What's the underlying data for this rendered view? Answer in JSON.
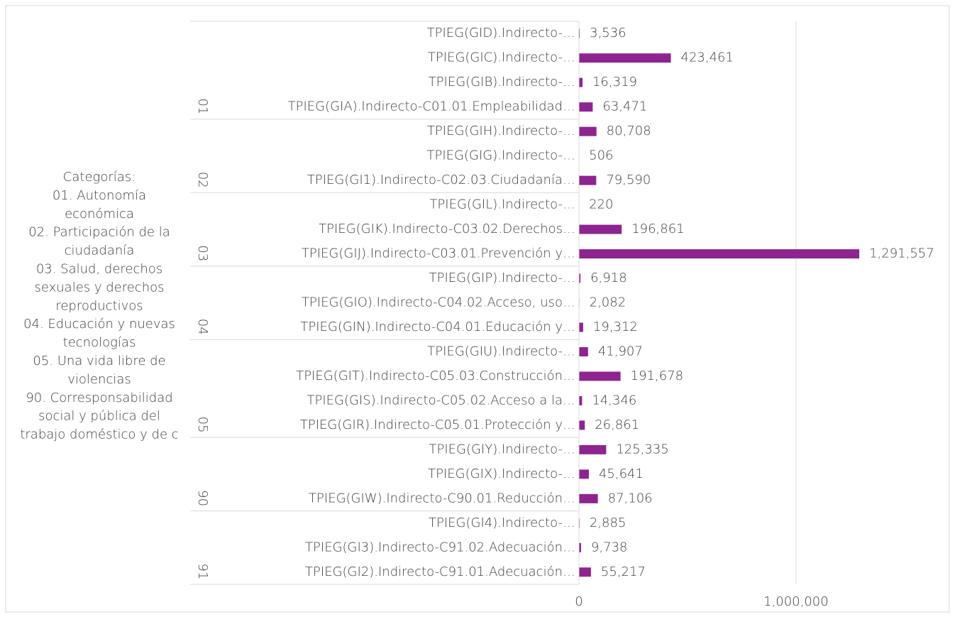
{
  "chart_data": {
    "type": "grouped_hbar",
    "color": "#8e2490",
    "side_text_lines": [
      "Categorías:",
      "01. Autonomía",
      "económica",
      "02. Participación de la",
      "ciudadanía",
      "03. Salud, derechos",
      "sexuales y derechos",
      "reproductivos",
      "04. Educación y nuevas",
      "tecnologías",
      "05. Una vida libre de",
      "violencias",
      "90. Corresponsabilidad",
      "social y pública del",
      "trabajo doméstico y de c"
    ],
    "xlim": [
      0,
      1700000
    ],
    "xticks": [
      0,
      {
        "value": 1000000,
        "label": "1,000,000"
      }
    ],
    "grid": true,
    "groups": [
      {
        "label": "01",
        "categories": [
          "TPIEG(GID).Indirecto-…",
          "TPIEG(GIC).Indirecto-…",
          "TPIEG(GIB).Indirecto-…",
          "TPIEG(GIA).Indirecto-C01.01.Empleabilidad…"
        ],
        "values": [
          3536,
          423461,
          16319,
          63471
        ],
        "value_labels": [
          "3,536",
          "423,461",
          "16,319",
          "63,471"
        ]
      },
      {
        "label": "02",
        "categories": [
          "TPIEG(GIH).Indirecto-…",
          "TPIEG(GIG).Indirecto-…",
          "TPIEG(GI1).Indirecto-C02.03.Ciudadanía…"
        ],
        "values": [
          80708,
          506,
          79590
        ],
        "value_labels": [
          "80,708",
          "506",
          "79,590"
        ]
      },
      {
        "label": "03",
        "categories": [
          "TPIEG(GIL).Indirecto-…",
          "TPIEG(GIK).Indirecto-C03.02.Derechos…",
          "TPIEG(GIJ).Indirecto-C03.01.Prevención y…"
        ],
        "values": [
          220,
          196861,
          1291557
        ],
        "value_labels": [
          "220",
          "196,861",
          "1,291,557"
        ]
      },
      {
        "label": "04",
        "categories": [
          "TPIEG(GIP).Indirecto-…",
          "TPIEG(GIO).Indirecto-C04.02.Acceso, uso…",
          "TPIEG(GIN).Indirecto-C04.01.Educación y…"
        ],
        "values": [
          6918,
          2082,
          19312
        ],
        "value_labels": [
          "6,918",
          "2,082",
          "19,312"
        ]
      },
      {
        "label": "05",
        "categories": [
          "TPIEG(GIU).Indirecto-…",
          "TPIEG(GIT).Indirecto-C05.03.Construcción…",
          "TPIEG(GIS).Indirecto-C05.02.Acceso a la…",
          "TPIEG(GIR).Indirecto-C05.01.Protección y…"
        ],
        "values": [
          41907,
          191678,
          14346,
          26861
        ],
        "value_labels": [
          "41,907",
          "191,678",
          "14,346",
          "26,861"
        ]
      },
      {
        "label": "90",
        "categories": [
          "TPIEG(GIY).Indirecto-…",
          "TPIEG(GIX).Indirecto-…",
          "TPIEG(GIW).Indirecto-C90.01.Reducción…"
        ],
        "values": [
          125335,
          45641,
          87106
        ],
        "value_labels": [
          "125,335",
          "45,641",
          "87,106"
        ]
      },
      {
        "label": "91",
        "categories": [
          "TPIEG(GI4).Indirecto-…",
          "TPIEG(GI3).Indirecto-C91.02.Adecuación…",
          "TPIEG(GI2).Indirecto-C91.01.Adecuación…"
        ],
        "values": [
          2885,
          9738,
          55217
        ],
        "value_labels": [
          "2,885",
          "9,738",
          "55,217"
        ]
      }
    ]
  }
}
